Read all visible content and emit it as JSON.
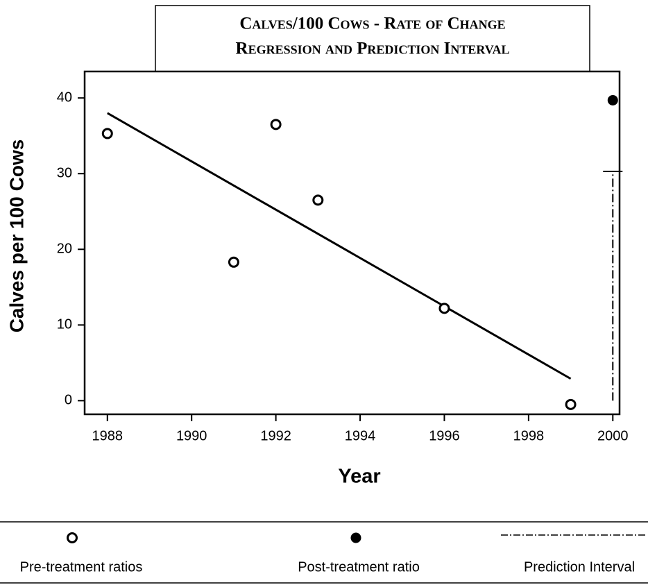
{
  "chart_data": {
    "type": "scatter",
    "title": [
      "Calves/100 Cows - Rate of Change",
      "Regression and Prediction Interval"
    ],
    "x_label": "Year",
    "y_label": "Calves per 100 Cows",
    "xlim": [
      1987.46,
      2000.16
    ],
    "xticks": [
      1988,
      1990,
      1992,
      1994,
      1996,
      1998,
      2000
    ],
    "ylim": [
      -1.8,
      43.5
    ],
    "yticks": [
      0,
      10,
      20,
      30,
      40
    ],
    "color": "#000000",
    "series": [
      {
        "name": "Pre-treatment ratios",
        "marker": "open",
        "x": [
          1988,
          1991,
          1992,
          1993,
          1996,
          1999
        ],
        "values": [
          35.3,
          18.3,
          36.5,
          26.5,
          12.2,
          -0.5
        ]
      },
      {
        "name": "Post-treatment ratio",
        "marker": "filled",
        "x": [
          2000
        ],
        "values": [
          39.7
        ]
      }
    ],
    "regression": {
      "x": [
        1988,
        1999
      ],
      "values": [
        38.0,
        2.9
      ]
    },
    "interval": {
      "name": "Prediction Interval",
      "x": 2000,
      "low": 0,
      "high": 30.3
    }
  }
}
